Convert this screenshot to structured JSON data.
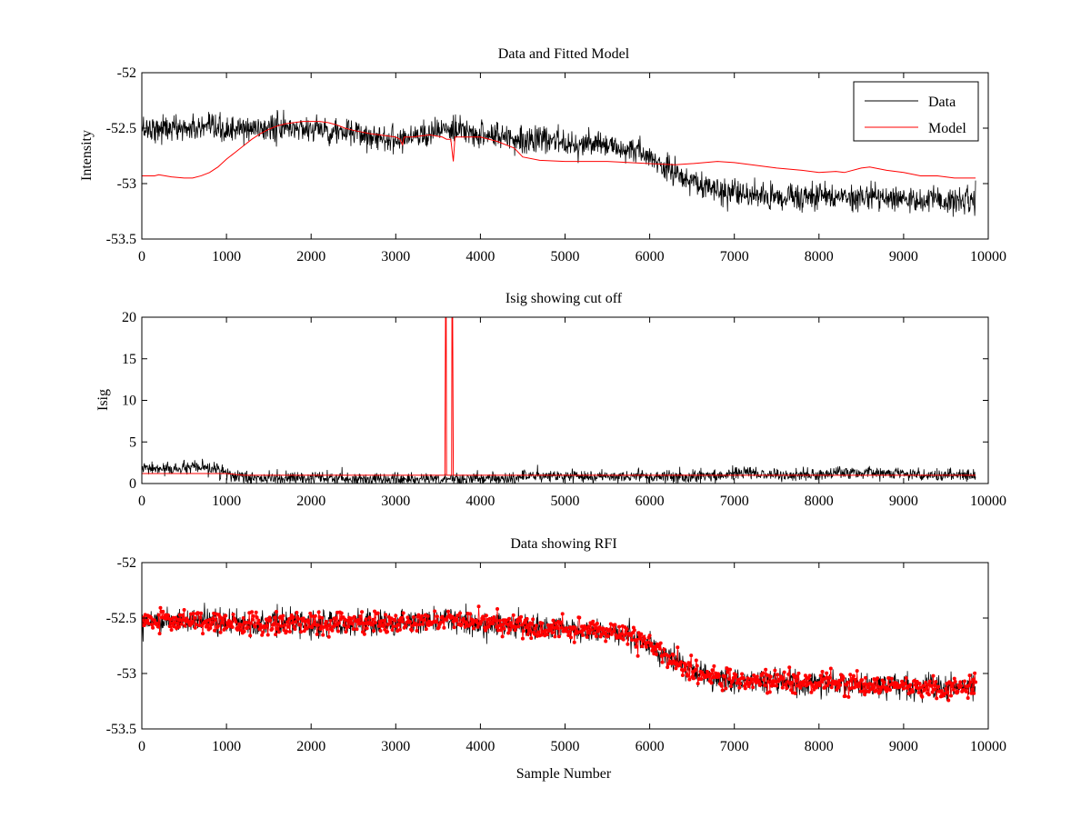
{
  "colors": {
    "data": "#000000",
    "model": "#ff0000",
    "rfi": "#ff0000",
    "axes": "#000000",
    "background": "#ffffff"
  },
  "chart_data": [
    {
      "type": "line",
      "title": "Data and Fitted Model",
      "xlabel": "",
      "ylabel": "Intensity",
      "xlim": [
        0,
        10000
      ],
      "ylim": [
        -53.5,
        -52
      ],
      "xticks": [
        "0",
        "1000",
        "2000",
        "3000",
        "4000",
        "5000",
        "6000",
        "7000",
        "8000",
        "9000",
        "10000"
      ],
      "yticks": [
        "-52",
        "-52.5",
        "-53",
        "-53.5"
      ],
      "grid": false,
      "legend": {
        "position": "top-right",
        "entries": [
          "Data",
          "Model"
        ]
      },
      "series": [
        {
          "name": "Data",
          "color": "#000000",
          "style": "noisy-line",
          "x": [
            0,
            500,
            1000,
            1500,
            2000,
            2500,
            3000,
            3500,
            4000,
            4500,
            5000,
            5500,
            5800,
            6000,
            6200,
            6400,
            6600,
            6800,
            7000,
            7500,
            8000,
            8500,
            9000,
            9500,
            9850
          ],
          "y": [
            -52.5,
            -52.5,
            -52.52,
            -52.5,
            -52.5,
            -52.55,
            -52.6,
            -52.52,
            -52.55,
            -52.6,
            -52.62,
            -52.66,
            -52.7,
            -52.78,
            -52.86,
            -52.94,
            -53.02,
            -53.06,
            -53.1,
            -53.12,
            -53.12,
            -53.12,
            -53.14,
            -53.16,
            -53.14
          ],
          "noise": 0.11
        },
        {
          "name": "Model",
          "color": "#ff0000",
          "style": "line",
          "x": [
            0,
            150,
            200,
            350,
            500,
            600,
            700,
            800,
            900,
            1000,
            1100,
            1200,
            1300,
            1400,
            1500,
            1600,
            1700,
            1800,
            1900,
            2000,
            2100,
            2200,
            2300,
            2400,
            2500,
            2700,
            2900,
            3000,
            3050,
            3080,
            3100,
            3200,
            3300,
            3400,
            3550,
            3600,
            3650,
            3680,
            3700,
            3800,
            4000,
            4200,
            4400,
            4500,
            4700,
            5000,
            5500,
            6000,
            6300,
            6500,
            6800,
            7000,
            7200,
            7500,
            7800,
            8000,
            8200,
            8300,
            8500,
            8600,
            8800,
            9000,
            9200,
            9400,
            9600,
            9850
          ],
          "y": [
            -52.93,
            -52.93,
            -52.92,
            -52.94,
            -52.95,
            -52.95,
            -52.93,
            -52.9,
            -52.85,
            -52.78,
            -52.72,
            -52.66,
            -52.6,
            -52.55,
            -52.51,
            -52.48,
            -52.46,
            -52.45,
            -52.44,
            -52.44,
            -52.44,
            -52.45,
            -52.47,
            -52.5,
            -52.52,
            -52.55,
            -52.57,
            -52.58,
            -52.6,
            -52.65,
            -52.58,
            -52.58,
            -52.57,
            -52.56,
            -52.58,
            -52.6,
            -52.6,
            -52.8,
            -52.58,
            -52.58,
            -52.58,
            -52.62,
            -52.68,
            -52.76,
            -52.79,
            -52.8,
            -52.8,
            -52.82,
            -52.83,
            -52.82,
            -52.8,
            -52.81,
            -52.83,
            -52.86,
            -52.88,
            -52.9,
            -52.89,
            -52.9,
            -52.86,
            -52.85,
            -52.88,
            -52.9,
            -52.93,
            -52.93,
            -52.95,
            -52.95
          ]
        }
      ]
    },
    {
      "type": "line",
      "title": "Isig showing cut off",
      "xlabel": "",
      "ylabel": "Isig",
      "xlim": [
        0,
        10000
      ],
      "ylim": [
        0,
        20
      ],
      "xticks": [
        "0",
        "1000",
        "2000",
        "3000",
        "4000",
        "5000",
        "6000",
        "7000",
        "8000",
        "9000",
        "10000"
      ],
      "yticks": [
        "0",
        "5",
        "10",
        "15",
        "20"
      ],
      "grid": false,
      "series": [
        {
          "color": "#000000",
          "style": "noisy-line",
          "x": [
            0,
            300,
            600,
            900,
            1000,
            1100,
            1300,
            2000,
            3000,
            4000,
            4400,
            4500,
            5000,
            6000,
            6500,
            7000,
            7200,
            7500,
            8000,
            8300,
            8600,
            9000,
            9500,
            9850
          ],
          "y": [
            1.8,
            1.7,
            1.9,
            1.7,
            1.2,
            0.8,
            0.6,
            0.6,
            0.5,
            0.6,
            0.6,
            0.9,
            0.9,
            0.8,
            0.8,
            1.1,
            1.3,
            1.0,
            1.0,
            1.3,
            1.4,
            1.1,
            1.0,
            1.0
          ],
          "noise": 0.7
        },
        {
          "color": "#ff0000",
          "style": "line",
          "x": [
            0,
            1000,
            1200,
            2000,
            3000,
            3580,
            3590,
            3595,
            3600,
            3610,
            3660,
            3665,
            3670,
            3680,
            4000,
            5000,
            6000,
            7000,
            8000,
            9000,
            9850
          ],
          "y": [
            1.2,
            1.2,
            1.0,
            1.0,
            1.0,
            1.0,
            25,
            25,
            1.0,
            1.0,
            1.0,
            25,
            25,
            1.0,
            1.0,
            1.0,
            1.0,
            1.0,
            1.0,
            1.0,
            1.0
          ]
        }
      ]
    },
    {
      "type": "line",
      "title": "Data showing RFI",
      "xlabel": "Sample Number",
      "ylabel": "",
      "xlim": [
        0,
        10000
      ],
      "ylim": [
        -53.5,
        -52
      ],
      "xticks": [
        "0",
        "1000",
        "2000",
        "3000",
        "4000",
        "5000",
        "6000",
        "7000",
        "8000",
        "9000",
        "10000"
      ],
      "yticks": [
        "-52",
        "-52.5",
        "-53",
        "-53.5"
      ],
      "grid": false,
      "series": [
        {
          "color": "#000000",
          "style": "noisy-line",
          "x": [
            0,
            500,
            1000,
            2000,
            3000,
            3500,
            3650,
            4000,
            5000,
            5800,
            6000,
            6200,
            6400,
            6600,
            6800,
            7000,
            8000,
            9000,
            9500,
            9850
          ],
          "y": [
            -52.52,
            -52.52,
            -52.54,
            -52.55,
            -52.55,
            -52.52,
            -52.5,
            -52.55,
            -52.6,
            -52.66,
            -52.74,
            -52.84,
            -52.94,
            -53.0,
            -53.04,
            -53.06,
            -53.08,
            -53.12,
            -53.14,
            -53.1
          ],
          "noise": 0.1
        },
        {
          "color": "#ff0000",
          "style": "noisy-markers",
          "x": [
            0,
            500,
            1000,
            2000,
            3000,
            3500,
            3650,
            4000,
            5000,
            5800,
            6000,
            6200,
            6400,
            6600,
            6800,
            7000,
            8000,
            9000,
            9500,
            9850
          ],
          "y": [
            -52.52,
            -52.52,
            -52.54,
            -52.55,
            -52.55,
            -52.52,
            -52.5,
            -52.55,
            -52.6,
            -52.66,
            -52.74,
            -52.84,
            -52.94,
            -53.0,
            -53.04,
            -53.06,
            -53.08,
            -53.12,
            -53.14,
            -53.1
          ],
          "noise": 0.09
        }
      ]
    }
  ]
}
